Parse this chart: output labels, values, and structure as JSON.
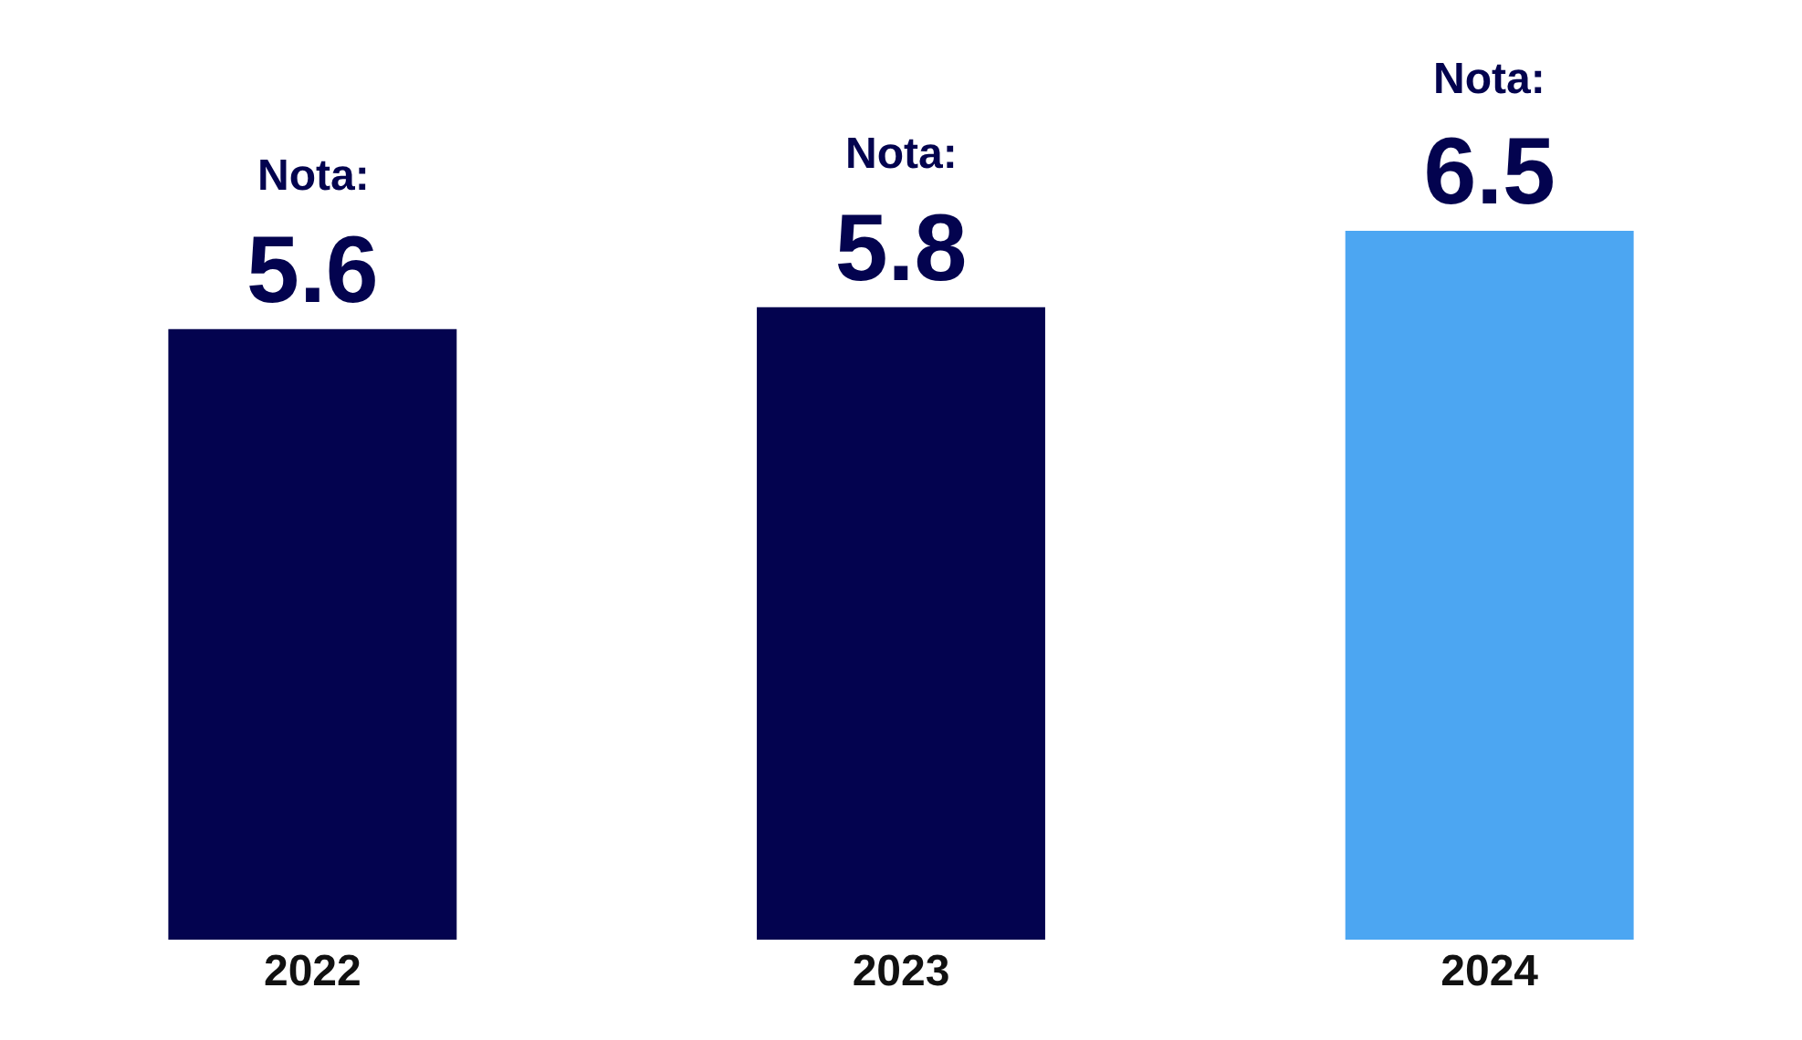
{
  "chart_data": {
    "type": "bar",
    "categories": [
      "2022",
      "2023",
      "2024"
    ],
    "values": [
      5.6,
      5.8,
      6.5
    ],
    "colors": [
      "#03034f",
      "#03034f",
      "#4ca6f2"
    ],
    "data_labels": true,
    "annotations": [
      {
        "text": "Nota:",
        "x": "2022",
        "y": 5.6
      },
      {
        "text": "Nota:",
        "x": "2023",
        "y": 5.8
      },
      {
        "text": "Nota:",
        "x": "2024",
        "y": 6.5
      }
    ],
    "tick_labels": "x",
    "legend": false
  }
}
